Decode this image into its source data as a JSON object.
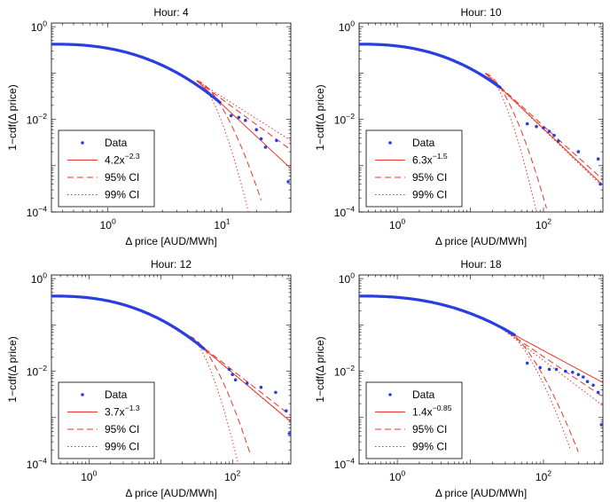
{
  "colors": {
    "data": "#2a3fe0",
    "fit": "#e8362b"
  },
  "chart_data": [
    {
      "type": "scatter",
      "title": "Hour: 4",
      "xlabel": "Δ price [AUD/MWh]",
      "ylabel": "1−cdf(Δ price)",
      "xscale": "log",
      "yscale": "log",
      "xlim": [
        0.32,
        40
      ],
      "ylim": [
        0.0001,
        1.2
      ],
      "xticks": [
        {
          "value": 1,
          "base": "10",
          "exp": "0"
        },
        {
          "value": 10,
          "base": "10",
          "exp": "1"
        }
      ],
      "yticks": [
        {
          "value": 1,
          "base": "10",
          "exp": "0"
        },
        {
          "value": 0.01,
          "base": "10",
          "exp": "−2"
        },
        {
          "value": 0.0001,
          "base": "10",
          "exp": "−4"
        }
      ],
      "scatter_extra": [
        [
          12,
          0.012
        ],
        [
          14,
          0.011
        ],
        [
          16,
          0.0095
        ],
        [
          20,
          0.006
        ],
        [
          22,
          0.0038
        ],
        [
          24,
          0.0025
        ],
        [
          30,
          0.0035
        ],
        [
          38,
          0.00045
        ]
      ],
      "fit": {
        "a": 4.2,
        "b": 2.3,
        "xmin": 6,
        "xmax": 40
      },
      "ci95": {
        "upper_end": 0.0022,
        "lower_end_x": 22,
        "lower_end_y": 0.00018
      },
      "ci99": {
        "upper_end": 0.0035,
        "lower_end_x": 17,
        "lower_end_y": 0.0001
      },
      "legend": {
        "position": "bottom-left",
        "entries": [
          {
            "kind": "data",
            "label": "Data"
          },
          {
            "kind": "fit",
            "base": "4.2x",
            "exp": "−2.3"
          },
          {
            "kind": "ci95",
            "label": "95% CI"
          },
          {
            "kind": "ci99",
            "label": "99% CI"
          }
        ]
      }
    },
    {
      "type": "scatter",
      "title": "Hour: 10",
      "xlabel": "Δ price [AUD/MWh]",
      "ylabel": "1−cdf(Δ price)",
      "xscale": "log",
      "yscale": "log",
      "xlim": [
        0.3,
        650
      ],
      "ylim": [
        0.0001,
        1.2
      ],
      "xticks": [
        {
          "value": 1,
          "base": "10",
          "exp": "0"
        },
        {
          "value": 100,
          "base": "10",
          "exp": "2"
        }
      ],
      "yticks": [
        {
          "value": 1,
          "base": "10",
          "exp": "0"
        },
        {
          "value": 0.01,
          "base": "10",
          "exp": "−2"
        },
        {
          "value": 0.0001,
          "base": "10",
          "exp": "−4"
        }
      ],
      "scatter_extra": [
        [
          60,
          0.008
        ],
        [
          80,
          0.007
        ],
        [
          100,
          0.0065
        ],
        [
          120,
          0.0055
        ],
        [
          140,
          0.0045
        ],
        [
          160,
          0.0034
        ],
        [
          300,
          0.002
        ],
        [
          560,
          0.0014
        ],
        [
          600,
          0.0004
        ]
      ],
      "fit": {
        "a": 6.3,
        "b": 1.5,
        "xmin": 16,
        "xmax": 650
      },
      "ci95": {
        "upper_end": 0.0005,
        "lower_end_x": 110,
        "lower_end_y": 0.00012
      },
      "ci99": {
        "upper_end": 0.00035,
        "lower_end_x": 80,
        "lower_end_y": 0.0001
      },
      "legend": {
        "position": "bottom-left",
        "entries": [
          {
            "kind": "data",
            "label": "Data"
          },
          {
            "kind": "fit",
            "base": "6.3x",
            "exp": "−1.5"
          },
          {
            "kind": "ci95",
            "label": "95% CI"
          },
          {
            "kind": "ci99",
            "label": "99% CI"
          }
        ]
      }
    },
    {
      "type": "scatter",
      "title": "Hour: 12",
      "xlabel": "Δ price [AUD/MWh]",
      "ylabel": "1−cdf(Δ price)",
      "xscale": "log",
      "yscale": "log",
      "xlim": [
        0.3,
        650
      ],
      "ylim": [
        0.0001,
        1.2
      ],
      "xticks": [
        {
          "value": 1,
          "base": "10",
          "exp": "0"
        },
        {
          "value": 100,
          "base": "10",
          "exp": "2"
        }
      ],
      "yticks": [
        {
          "value": 1,
          "base": "10",
          "exp": "0"
        },
        {
          "value": 0.01,
          "base": "10",
          "exp": "−2"
        },
        {
          "value": 0.0001,
          "base": "10",
          "exp": "−4"
        }
      ],
      "scatter_extra": [
        [
          90,
          0.011
        ],
        [
          100,
          0.0085
        ],
        [
          110,
          0.0065
        ],
        [
          160,
          0.0055
        ],
        [
          250,
          0.0045
        ],
        [
          400,
          0.0035
        ],
        [
          560,
          0.0014
        ],
        [
          620,
          0.00045
        ]
      ],
      "fit": {
        "a": 3.7,
        "b": 1.3,
        "xmin": 25,
        "xmax": 650
      },
      "ci95": {
        "upper_end": 0.0011,
        "lower_end_x": 180,
        "lower_end_y": 0.00015
      },
      "ci99": {
        "upper_end": 0.0008,
        "lower_end_x": 120,
        "lower_end_y": 0.0001
      },
      "legend": {
        "position": "bottom-left",
        "entries": [
          {
            "kind": "data",
            "label": "Data"
          },
          {
            "kind": "fit",
            "base": "3.7x",
            "exp": "−1.3"
          },
          {
            "kind": "ci95",
            "label": "95% CI"
          },
          {
            "kind": "ci99",
            "label": "99% CI"
          }
        ]
      }
    },
    {
      "type": "scatter",
      "title": "Hour: 18",
      "xlabel": "Δ price [AUD/MWh]",
      "ylabel": "1−cdf(Δ price)",
      "xscale": "log",
      "yscale": "log",
      "xlim": [
        0.3,
        650
      ],
      "ylim": [
        0.0001,
        1.2
      ],
      "xticks": [
        {
          "value": 1,
          "base": "10",
          "exp": "0"
        },
        {
          "value": 100,
          "base": "10",
          "exp": "2"
        }
      ],
      "yticks": [
        {
          "value": 1,
          "base": "10",
          "exp": "0"
        },
        {
          "value": 0.01,
          "base": "10",
          "exp": "−2"
        },
        {
          "value": 0.0001,
          "base": "10",
          "exp": "−4"
        }
      ],
      "scatter_extra": [
        [
          60,
          0.015
        ],
        [
          90,
          0.012
        ],
        [
          120,
          0.011
        ],
        [
          150,
          0.011
        ],
        [
          200,
          0.01
        ],
        [
          250,
          0.0095
        ],
        [
          300,
          0.0085
        ],
        [
          350,
          0.0075
        ],
        [
          400,
          0.006
        ],
        [
          480,
          0.005
        ],
        [
          560,
          0.0035
        ],
        [
          620,
          0.0007
        ]
      ],
      "fit": {
        "a": 1.4,
        "b": 0.85,
        "xmin": 25,
        "xmax": 650
      },
      "ci95": {
        "upper_end": 0.0028,
        "lower_end_x": 300,
        "lower_end_y": 0.00018
      },
      "ci99": {
        "upper_end": 0.0018,
        "lower_end_x": 230,
        "lower_end_y": 0.00022
      },
      "legend": {
        "position": "bottom-left",
        "entries": [
          {
            "kind": "data",
            "label": "Data"
          },
          {
            "kind": "fit",
            "base": "1.4x",
            "exp": "−0.85"
          },
          {
            "kind": "ci95",
            "label": "95% CI"
          },
          {
            "kind": "ci99",
            "label": "99% CI"
          }
        ]
      }
    }
  ]
}
